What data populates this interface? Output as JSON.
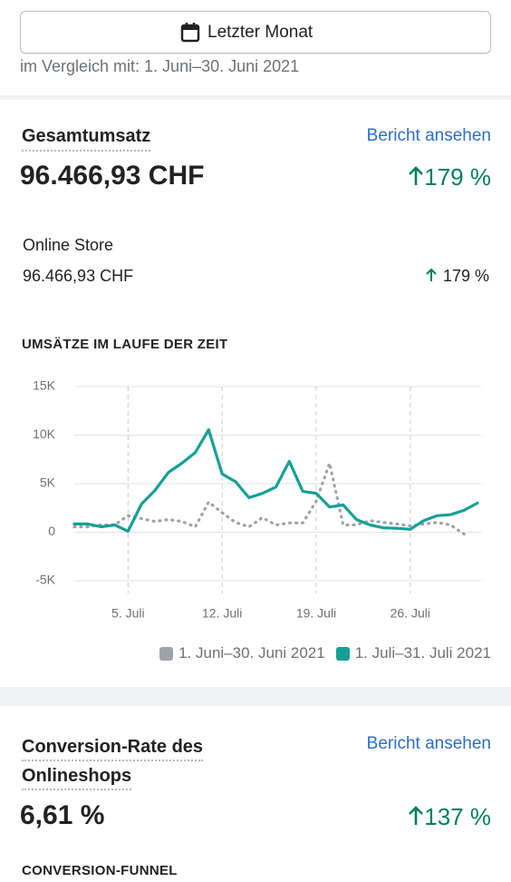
{
  "header": {
    "button": "Letzter Monat",
    "comparison": "im Vergleich mit: 1. Juni–30. Juni 2021"
  },
  "sales": {
    "title": "Gesamtumsatz",
    "link": "Bericht ansehen",
    "total": "96.466,93 CHF",
    "change": "179 %",
    "channel": {
      "name": "Online Store",
      "value": "96.466,93 CHF",
      "change": "179 %"
    }
  },
  "chart_data": {
    "type": "line",
    "title": "UMSÄTZE IM LAUFE DER ZEIT",
    "x": [
      1,
      2,
      3,
      4,
      5,
      6,
      7,
      8,
      9,
      10,
      11,
      12,
      13,
      14,
      15,
      16,
      17,
      18,
      19,
      20,
      21,
      22,
      23,
      24,
      25,
      26,
      27,
      28,
      29,
      30,
      31
    ],
    "series": [
      {
        "name": "1. Juni–30. Juni 2021",
        "color": "#9ea3aa",
        "dashed": true,
        "values": [
          550,
          550,
          750,
          750,
          1700,
          1400,
          1100,
          1300,
          1100,
          550,
          3100,
          2000,
          1000,
          550,
          1500,
          750,
          950,
          950,
          3200,
          7100,
          750,
          750,
          1200,
          1000,
          850,
          650,
          850,
          1000,
          750,
          -200,
          null
        ]
      },
      {
        "name": "1. Juli–31. Juli 2021",
        "color": "#14a096",
        "dashed": false,
        "values": [
          850,
          850,
          550,
          750,
          100,
          2900,
          4300,
          6150,
          7100,
          8200,
          10550,
          6000,
          5200,
          3550,
          4000,
          4650,
          7300,
          4200,
          4000,
          2600,
          2800,
          1300,
          750,
          450,
          400,
          300,
          1200,
          1700,
          1800,
          2250,
          3000
        ]
      }
    ],
    "xlim": [
      1,
      31
    ],
    "xticks": [
      {
        "value": 5,
        "label": "5. Juli"
      },
      {
        "value": 12,
        "label": "12. Juli"
      },
      {
        "value": 19,
        "label": "19. Juli"
      },
      {
        "value": 26,
        "label": "26. Juli"
      }
    ],
    "ylim": [
      -5000,
      15000
    ],
    "yticks": [
      {
        "value": 15000,
        "label": "15K"
      },
      {
        "value": 10000,
        "label": "10K"
      },
      {
        "value": 5000,
        "label": "5K"
      },
      0,
      {
        "value": -5000,
        "label": "-5K"
      }
    ],
    "grid": true,
    "legend": "bottom-right"
  },
  "conversion": {
    "title": "Conversion-Rate des Onlineshops",
    "link": "Bericht ansehen",
    "value": "6,61 %",
    "change": "137 %",
    "section": "CONVERSION-FUNNEL"
  }
}
